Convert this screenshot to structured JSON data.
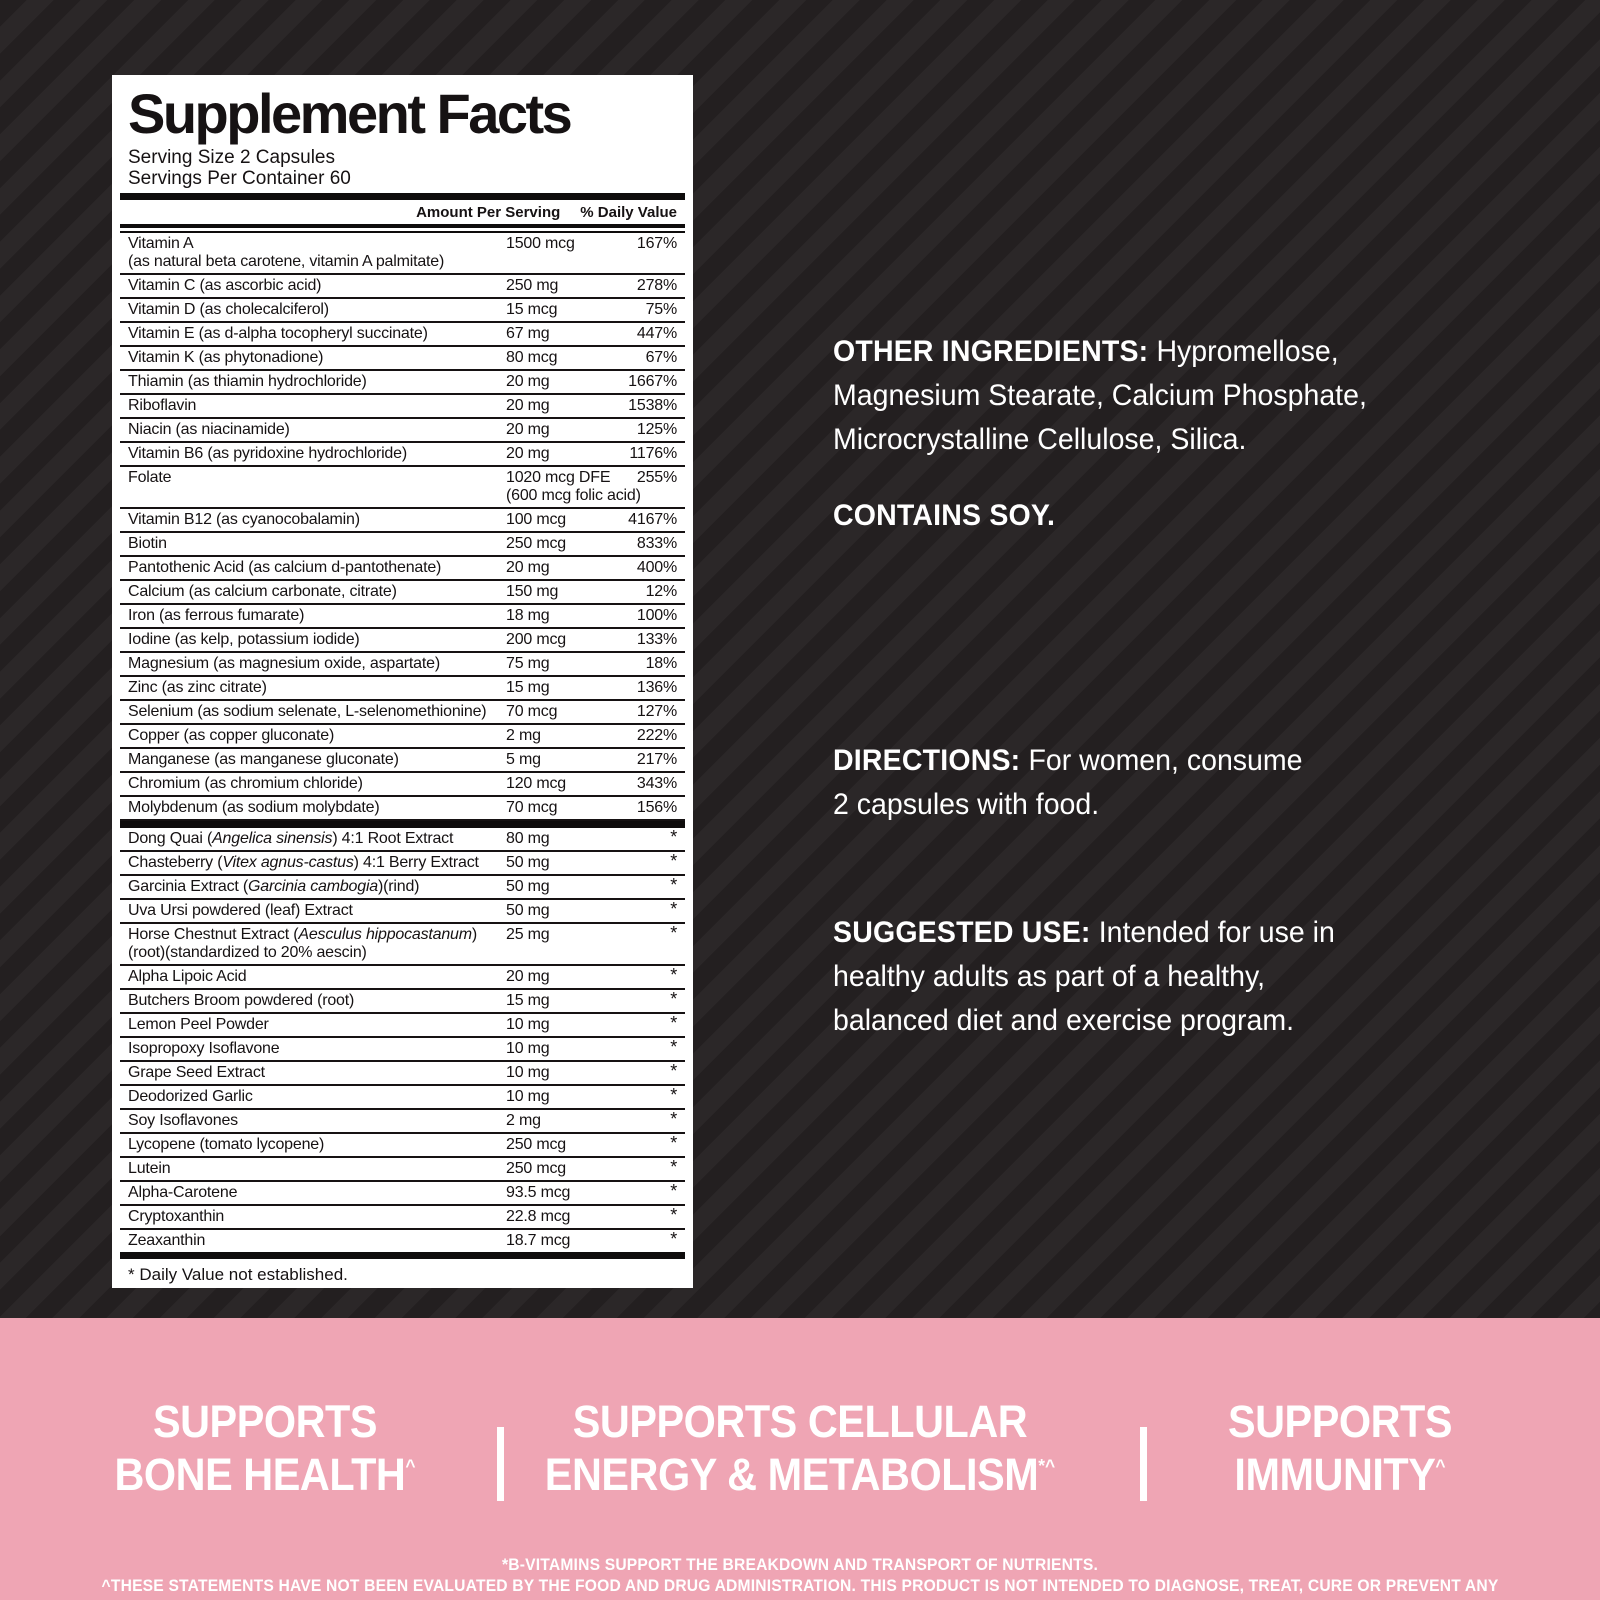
{
  "colors": {
    "background_dark": "#231f20",
    "background_stripe": "#2b2728",
    "banner_pink": "#efa5b4",
    "panel_white": "#ffffff",
    "text_black": "#161213",
    "text_white": "#ffffff"
  },
  "supplement_facts": {
    "title": "Supplement Facts",
    "serving_size": "Serving Size 2 Capsules",
    "servings_per_container": "Servings Per Container 60",
    "col_amount": "Amount Per Serving",
    "col_dv": "% Daily Value",
    "footnote": "* Daily Value not established.",
    "rows": [
      {
        "name": "Vitamin A",
        "name2": "(as natural beta carotene, vitamin A palmitate)",
        "amount": "1500 mcg",
        "dv": "167%"
      },
      {
        "name": "Vitamin C (as ascorbic acid)",
        "amount": "250 mg",
        "dv": "278%"
      },
      {
        "name": "Vitamin D (as cholecalciferol)",
        "amount": "15 mcg",
        "dv": "75%"
      },
      {
        "name": "Vitamin E (as d-alpha tocopheryl succinate)",
        "amount": "67 mg",
        "dv": "447%"
      },
      {
        "name": "Vitamin K (as phytonadione)",
        "amount": "80 mcg",
        "dv": "67%"
      },
      {
        "name": "Thiamin (as thiamin hydrochloride)",
        "amount": "20 mg",
        "dv": "1667%"
      },
      {
        "name": "Riboflavin",
        "amount": "20 mg",
        "dv": "1538%"
      },
      {
        "name": "Niacin (as niacinamide)",
        "amount": "20 mg",
        "dv": "125%"
      },
      {
        "name": "Vitamin B6 (as pyridoxine hydrochloride)",
        "amount": "20 mg",
        "dv": "1176%"
      },
      {
        "name": "Folate",
        "amount": "1020 mcg DFE",
        "amount2": "(600 mcg folic acid)",
        "dv": "255%"
      },
      {
        "name": "Vitamin B12 (as cyanocobalamin)",
        "amount": "100 mcg",
        "dv": "4167%"
      },
      {
        "name": "Biotin",
        "amount": "250 mcg",
        "dv": "833%"
      },
      {
        "name": "Pantothenic Acid (as calcium d-pantothenate)",
        "amount": "20 mg",
        "dv": "400%"
      },
      {
        "name": "Calcium (as calcium carbonate, citrate)",
        "amount": "150 mg",
        "dv": "12%"
      },
      {
        "name": "Iron (as ferrous fumarate)",
        "amount": "18 mg",
        "dv": "100%"
      },
      {
        "name": "Iodine (as kelp, potassium iodide)",
        "amount": "200 mcg",
        "dv": "133%"
      },
      {
        "name": "Magnesium (as magnesium oxide, aspartate)",
        "amount": "75 mg",
        "dv": "18%"
      },
      {
        "name": "Zinc (as zinc citrate)",
        "amount": "15 mg",
        "dv": "136%"
      },
      {
        "name": "Selenium (as sodium selenate, L-selenomethionine)",
        "amount": "70 mcg",
        "dv": "127%"
      },
      {
        "name": "Copper (as copper gluconate)",
        "amount": "2 mg",
        "dv": "222%"
      },
      {
        "name": "Manganese (as manganese gluconate)",
        "amount": "5 mg",
        "dv": "217%"
      },
      {
        "name": "Chromium (as chromium chloride)",
        "amount": "120 mcg",
        "dv": "343%"
      },
      {
        "name": "Molybdenum (as sodium molybdate)",
        "amount": "70 mcg",
        "dv": "156%"
      },
      {
        "section_break": true,
        "name": [
          {
            "t": "Dong Quai ("
          },
          {
            "t": "Angelica sinensis",
            "i": true
          },
          {
            "t": ") 4:1 Root Extract"
          }
        ],
        "amount": "80 mg",
        "dv": "*"
      },
      {
        "name": [
          {
            "t": "Chasteberry ("
          },
          {
            "t": "Vitex agnus-castus",
            "i": true
          },
          {
            "t": ") 4:1 Berry Extract"
          }
        ],
        "amount": "50 mg",
        "dv": "*"
      },
      {
        "name": [
          {
            "t": "Garcinia Extract ("
          },
          {
            "t": "Garcinia cambogia",
            "i": true
          },
          {
            "t": ")(rind)"
          }
        ],
        "amount": "50 mg",
        "dv": "*"
      },
      {
        "name": "Uva Ursi powdered (leaf) Extract",
        "amount": "50 mg",
        "dv": "*"
      },
      {
        "name": [
          {
            "t": "Horse Chestnut Extract ("
          },
          {
            "t": "Aesculus hippocastanum",
            "i": true
          },
          {
            "t": ")"
          }
        ],
        "name2": "(root)(standardized to 20% aescin)",
        "amount": "25 mg",
        "dv": "*"
      },
      {
        "name": "Alpha Lipoic Acid",
        "amount": "20 mg",
        "dv": "*"
      },
      {
        "name": "Butchers Broom powdered (root)",
        "amount": "15 mg",
        "dv": "*"
      },
      {
        "name": "Lemon Peel Powder",
        "amount": "10 mg",
        "dv": "*"
      },
      {
        "name": "Isopropoxy Isoflavone",
        "amount": "10 mg",
        "dv": "*"
      },
      {
        "name": "Grape Seed Extract",
        "amount": "10 mg",
        "dv": "*"
      },
      {
        "name": "Deodorized Garlic",
        "amount": "10 mg",
        "dv": "*"
      },
      {
        "name": "Soy Isoflavones",
        "amount": "2 mg",
        "dv": "*"
      },
      {
        "name": "Lycopene (tomato lycopene)",
        "amount": "250 mcg",
        "dv": "*"
      },
      {
        "name": "Lutein",
        "amount": "250 mcg",
        "dv": "*"
      },
      {
        "name": "Alpha-Carotene",
        "amount": "93.5 mcg",
        "dv": "*"
      },
      {
        "name": "Cryptoxanthin",
        "amount": "22.8 mcg",
        "dv": "*"
      },
      {
        "name": "Zeaxanthin",
        "amount": "18.7 mcg",
        "dv": "*"
      }
    ]
  },
  "info": {
    "other_ingredients": {
      "heading": "OTHER INGREDIENTS: ",
      "text": "Hypromellose,\nMagnesium Stearate, Calcium Phosphate,\nMicrocrystalline Cellulose, Silica."
    },
    "contains": {
      "heading": "CONTAINS SOY.",
      "text": ""
    },
    "directions": {
      "heading": "DIRECTIONS: ",
      "text": "For women, consume\n2 capsules with food."
    },
    "suggested_use": {
      "heading": "SUGGESTED USE: ",
      "text": "Intended for use in\nhealthy adults as part of a healthy,\nbalanced diet and exercise program."
    }
  },
  "banner": {
    "claims": [
      {
        "line1": "SUPPORTS",
        "line2": "BONE HEALTH",
        "sup": "^"
      },
      {
        "line1": "SUPPORTS CELLULAR",
        "line2": "ENERGY & METABOLISM",
        "sup": "*^"
      },
      {
        "line1": "SUPPORTS",
        "line2": "IMMUNITY",
        "sup": "^"
      }
    ],
    "footnotes": [
      "*B-VITAMINS SUPPORT THE BREAKDOWN AND TRANSPORT OF NUTRIENTS.",
      "^THESE STATEMENTS HAVE NOT BEEN EVALUATED BY THE FOOD AND DRUG ADMINISTRATION. THIS PRODUCT IS NOT INTENDED TO DIAGNOSE, TREAT, CURE OR PREVENT ANY DISEASE."
    ]
  }
}
